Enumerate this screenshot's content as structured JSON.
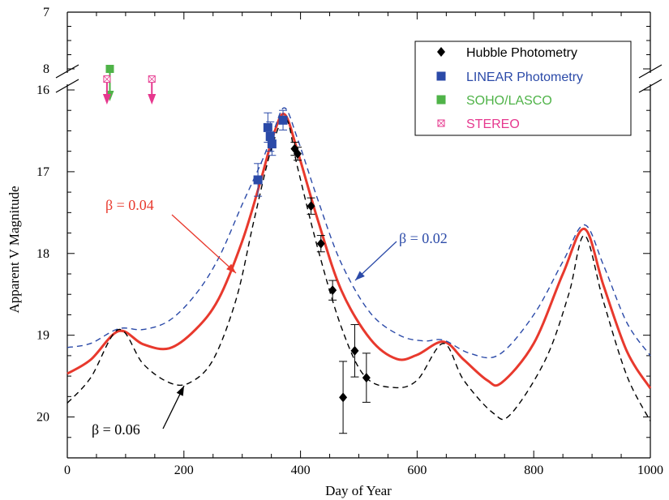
{
  "chart_data": {
    "type": "line",
    "xlabel": "Day of Year",
    "ylabel": "Apparent V Magnitude",
    "xlim": [
      0,
      1000
    ],
    "ylim_main": [
      16,
      20.5
    ],
    "ylim_top": [
      7,
      8
    ],
    "y_axis_inverted": true,
    "broken_y_axis": true,
    "grid": false,
    "legend_position": "top-right",
    "x_ticks": [
      "0",
      "200",
      "400",
      "600",
      "800",
      "1000"
    ],
    "y_ticks_main": [
      "16",
      "17",
      "18",
      "19",
      "20"
    ],
    "y_ticks_top": [
      "7",
      "8"
    ],
    "series": [
      {
        "name": "Hubble Photometry",
        "marker": "diamond",
        "color": "#000000",
        "points": [
          {
            "x": 390,
            "y": 16.72,
            "err": 0.08
          },
          {
            "x": 395,
            "y": 16.78,
            "err": 0.08
          },
          {
            "x": 418,
            "y": 17.42,
            "err": 0.1
          },
          {
            "x": 435,
            "y": 17.88,
            "err": 0.1
          },
          {
            "x": 455,
            "y": 18.45,
            "err": 0.12
          },
          {
            "x": 473,
            "y": 19.76,
            "err": 0.44
          },
          {
            "x": 493,
            "y": 19.19,
            "err": 0.32
          },
          {
            "x": 513,
            "y": 19.52,
            "err": 0.3
          }
        ]
      },
      {
        "name": "LINEAR Photometry",
        "marker": "square",
        "color": "#2b4aa8",
        "points": [
          {
            "x": 327,
            "y": 17.1,
            "err": 0.2
          },
          {
            "x": 344,
            "y": 16.46,
            "err": 0.18
          },
          {
            "x": 348,
            "y": 16.57,
            "err": 0.18
          },
          {
            "x": 351,
            "y": 16.66,
            "err": 0.14
          },
          {
            "x": 370,
            "y": 16.37,
            "err": 0.12
          }
        ]
      },
      {
        "name": "SOHO/LASCO",
        "marker": "square",
        "color": "#4fb348",
        "points": [
          {
            "x": 73,
            "y_top": 8.0,
            "upper_limit": true
          }
        ]
      },
      {
        "name": "STEREO",
        "marker": "crossed-square",
        "color": "#e6378e",
        "points": [
          {
            "x": 68,
            "y_top": 8.18,
            "upper_limit": true
          },
          {
            "x": 145,
            "y_top": 8.18,
            "upper_limit": true
          }
        ]
      }
    ],
    "models": [
      {
        "label": "β = 0.04",
        "style": "solid",
        "color": "#e8392d",
        "points": [
          [
            0,
            19.47
          ],
          [
            40,
            19.3
          ],
          [
            88,
            18.95
          ],
          [
            130,
            19.11
          ],
          [
            175,
            19.16
          ],
          [
            220,
            18.93
          ],
          [
            260,
            18.55
          ],
          [
            300,
            17.85
          ],
          [
            330,
            17.15
          ],
          [
            355,
            16.52
          ],
          [
            373,
            16.3
          ],
          [
            395,
            16.75
          ],
          [
            430,
            17.6
          ],
          [
            470,
            18.45
          ],
          [
            520,
            19.05
          ],
          [
            565,
            19.29
          ],
          [
            600,
            19.24
          ],
          [
            645,
            19.08
          ],
          [
            680,
            19.3
          ],
          [
            720,
            19.55
          ],
          [
            745,
            19.58
          ],
          [
            800,
            19.1
          ],
          [
            850,
            18.25
          ],
          [
            887,
            17.7
          ],
          [
            920,
            18.4
          ],
          [
            960,
            19.2
          ],
          [
            1000,
            19.65
          ]
        ]
      },
      {
        "label": "β = 0.02",
        "style": "dashed",
        "color": "#2b4aa8",
        "points": [
          [
            0,
            19.15
          ],
          [
            40,
            19.1
          ],
          [
            88,
            18.92
          ],
          [
            130,
            18.93
          ],
          [
            175,
            18.82
          ],
          [
            220,
            18.5
          ],
          [
            260,
            18.05
          ],
          [
            300,
            17.4
          ],
          [
            335,
            16.85
          ],
          [
            355,
            16.48
          ],
          [
            373,
            16.22
          ],
          [
            395,
            16.6
          ],
          [
            430,
            17.35
          ],
          [
            470,
            18.12
          ],
          [
            520,
            18.73
          ],
          [
            570,
            19.0
          ],
          [
            610,
            19.07
          ],
          [
            645,
            19.06
          ],
          [
            690,
            19.22
          ],
          [
            740,
            19.24
          ],
          [
            800,
            18.75
          ],
          [
            850,
            18.1
          ],
          [
            887,
            17.65
          ],
          [
            920,
            18.15
          ],
          [
            960,
            18.85
          ],
          [
            1000,
            19.25
          ]
        ]
      },
      {
        "label": "β = 0.06",
        "style": "dashed",
        "color": "#000000",
        "points": [
          [
            0,
            19.83
          ],
          [
            40,
            19.52
          ],
          [
            88,
            18.93
          ],
          [
            130,
            19.35
          ],
          [
            175,
            19.58
          ],
          [
            210,
            19.58
          ],
          [
            250,
            19.3
          ],
          [
            290,
            18.55
          ],
          [
            320,
            17.6
          ],
          [
            350,
            16.72
          ],
          [
            375,
            16.35
          ],
          [
            395,
            16.95
          ],
          [
            430,
            17.95
          ],
          [
            470,
            18.9
          ],
          [
            510,
            19.5
          ],
          [
            560,
            19.64
          ],
          [
            600,
            19.55
          ],
          [
            645,
            19.1
          ],
          [
            680,
            19.55
          ],
          [
            730,
            19.95
          ],
          [
            760,
            19.97
          ],
          [
            820,
            19.3
          ],
          [
            860,
            18.5
          ],
          [
            887,
            17.78
          ],
          [
            920,
            18.6
          ],
          [
            960,
            19.5
          ],
          [
            1000,
            20.05
          ]
        ]
      }
    ],
    "annotations": [
      {
        "text": "β = 0.04",
        "color": "#e8392d"
      },
      {
        "text": "β = 0.02",
        "color": "#2b4aa8"
      },
      {
        "text": "β = 0.06",
        "color": "#000000"
      }
    ]
  }
}
